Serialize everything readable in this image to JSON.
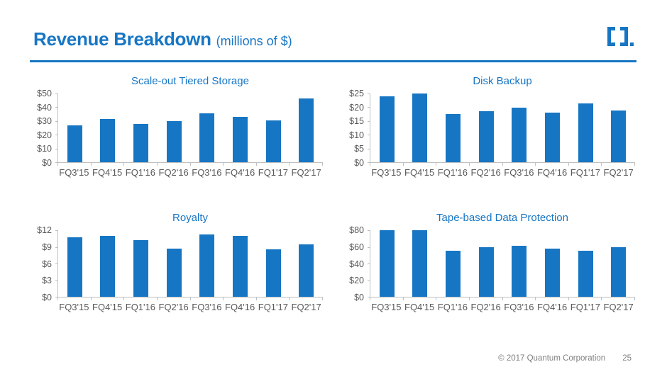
{
  "slide": {
    "header": {
      "title": "Revenue Breakdown",
      "subtitle": "(millions of $)"
    },
    "logo_icon": "quantum-brackets-logo",
    "footer": {
      "copyright": "© 2017 Quantum Corporation",
      "page_number": "25"
    }
  },
  "colors": {
    "accent_blue": "#1776C4",
    "bar_blue": "#1776C4",
    "axis_line_gray": "#BFBFBF",
    "tick_label_gray": "#595959",
    "footer_gray": "#7F7F7F"
  },
  "chart_data": [
    {
      "type": "bar",
      "title": "Scale-out Tiered Storage",
      "categories": [
        "FQ3'15",
        "FQ4'15",
        "FQ1'16",
        "FQ2'16",
        "FQ3'16",
        "FQ4'16",
        "FQ1'17",
        "FQ2'17"
      ],
      "values": [
        27,
        31.5,
        28,
        30,
        35.5,
        33,
        30.5,
        46.5
      ],
      "ylim": [
        0,
        50
      ],
      "ytick_step": 10,
      "ytick_labels": [
        "$50",
        "$40",
        "$30",
        "$20",
        "$10",
        "$0"
      ],
      "xlabel": "",
      "ylabel": "",
      "grid": false,
      "legend": "none"
    },
    {
      "type": "bar",
      "title": "Disk Backup",
      "categories": [
        "FQ3'15",
        "FQ4'15",
        "FQ1'16",
        "FQ2'16",
        "FQ3'16",
        "FQ4'16",
        "FQ1'17",
        "FQ2'17"
      ],
      "values": [
        24,
        25,
        17.5,
        18.5,
        19.8,
        18.1,
        21.5,
        18.7
      ],
      "ylim": [
        0,
        25
      ],
      "ytick_step": 5,
      "ytick_labels": [
        "$25",
        "$20",
        "$15",
        "$10",
        "$5",
        "$0"
      ],
      "xlabel": "",
      "ylabel": "",
      "grid": false,
      "legend": "none"
    },
    {
      "type": "bar",
      "title": "Royalty",
      "categories": [
        "FQ3'15",
        "FQ4'15",
        "FQ1'16",
        "FQ2'16",
        "FQ3'16",
        "FQ4'16",
        "FQ1'17",
        "FQ2'17"
      ],
      "values": [
        10.7,
        11,
        10.2,
        8.7,
        11.2,
        11,
        8.6,
        9.4
      ],
      "ylim": [
        0,
        12
      ],
      "ytick_step": 3,
      "ytick_labels": [
        "$12",
        "$9",
        "$6",
        "$3",
        "$0"
      ],
      "xlabel": "",
      "ylabel": "",
      "grid": false,
      "legend": "none"
    },
    {
      "type": "bar",
      "title": "Tape-based Data Protection",
      "categories": [
        "FQ3'15",
        "FQ4'15",
        "FQ1'16",
        "FQ2'16",
        "FQ3'16",
        "FQ4'16",
        "FQ1'17",
        "FQ2'17"
      ],
      "values": [
        80,
        80,
        55.5,
        59.5,
        61,
        57.5,
        55,
        59.5
      ],
      "ylim": [
        0,
        80
      ],
      "ytick_step": 20,
      "ytick_labels": [
        "$80",
        "$60",
        "$40",
        "$20",
        "$0"
      ],
      "xlabel": "",
      "ylabel": "",
      "grid": false,
      "legend": "none"
    }
  ]
}
